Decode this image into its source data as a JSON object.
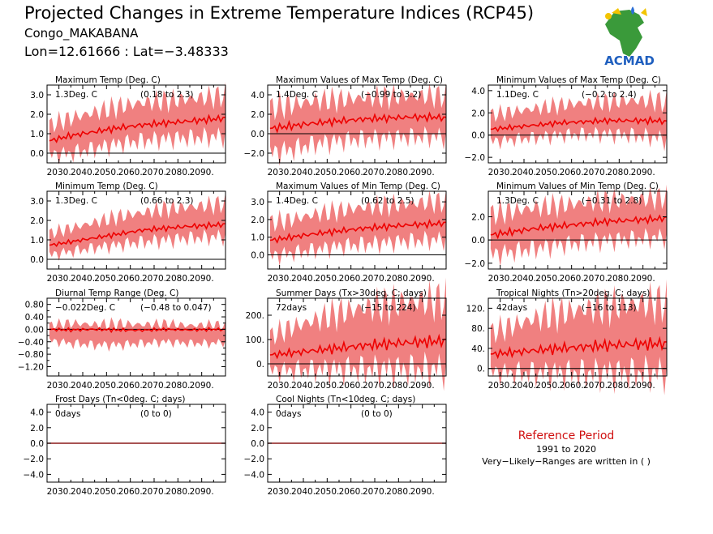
{
  "header": {
    "title": "Projected Changes in Extreme Temperature Indices (RCP45)",
    "location": "Congo_MAKABANA",
    "coords": "Lon=12.61666 : Lat=−3.48333"
  },
  "logo": {
    "name": "ACMAD",
    "text": "ACMAD",
    "icon": "africa-map-logo-icon"
  },
  "reference": {
    "heading": "Reference Period",
    "period": "1991 to 2020",
    "note": "Very−Likely−Ranges are written in ( )"
  },
  "colors": {
    "band": "#f08080",
    "line": "#ee0000",
    "axis": "#000000",
    "zero": "#000000"
  },
  "x_ticks": [
    "2030.",
    "2040.",
    "2050.",
    "2060.",
    "2070.",
    "2080.",
    "2090."
  ],
  "chart_data": [
    {
      "type": "area",
      "title": "Maximum Temp (Deg. C)",
      "value": "1.3Deg. C",
      "range": "(0.18 to 2.3)",
      "ylim": [
        -0.5,
        3.5
      ],
      "yticks": [
        0,
        1,
        2,
        3
      ],
      "ytick_labels": [
        "0.0",
        "1.0",
        "2.0",
        "3.0"
      ],
      "x": [
        2025,
        2035,
        2045,
        2055,
        2065,
        2075,
        2085,
        2095,
        2100
      ],
      "mean": [
        0.6,
        0.9,
        1.1,
        1.3,
        1.45,
        1.55,
        1.65,
        1.75,
        1.8
      ],
      "low": [
        -0.1,
        0.0,
        0.25,
        0.5,
        0.65,
        0.75,
        0.8,
        0.85,
        0.9
      ],
      "high": [
        1.4,
        1.8,
        2.1,
        2.4,
        2.6,
        2.7,
        2.8,
        2.9,
        3.0
      ]
    },
    {
      "type": "area",
      "title": "Maximum Values of Max Temp (Deg. C)",
      "value": "1.4Deg. C",
      "range": "(−0.99 to 3.2)",
      "ylim": [
        -3,
        5
      ],
      "yticks": [
        -2,
        0,
        2,
        4
      ],
      "ytick_labels": [
        "−2.0",
        "0.0",
        "2.0",
        "4.0"
      ],
      "x": [
        2025,
        2035,
        2045,
        2055,
        2065,
        2075,
        2085,
        2095,
        2100
      ],
      "mean": [
        0.5,
        0.8,
        1.1,
        1.3,
        1.5,
        1.6,
        1.7,
        1.7,
        1.6
      ],
      "low": [
        -2.0,
        -1.6,
        -1.0,
        -0.7,
        -0.5,
        -0.4,
        -0.3,
        -0.3,
        -0.3
      ],
      "high": [
        2.6,
        3.0,
        3.4,
        3.5,
        3.7,
        3.8,
        3.9,
        3.9,
        3.9
      ]
    },
    {
      "type": "area",
      "title": "Minimum Values of Max Temp (Deg. C)",
      "value": "1.1Deg. C",
      "range": "(−0.2 to 2.4)",
      "ylim": [
        -2.5,
        4.5
      ],
      "yticks": [
        -2,
        0,
        2,
        4
      ],
      "ytick_labels": [
        "−2.0",
        "0.0",
        "2.0",
        "4.0"
      ],
      "x": [
        2025,
        2035,
        2045,
        2055,
        2065,
        2075,
        2085,
        2095,
        2100
      ],
      "mean": [
        0.5,
        0.7,
        0.9,
        1.1,
        1.2,
        1.3,
        1.3,
        1.3,
        1.2
      ],
      "low": [
        -0.6,
        -0.4,
        -0.2,
        0.0,
        0.1,
        0.1,
        0.0,
        -0.2,
        -0.4
      ],
      "high": [
        1.8,
        2.1,
        2.4,
        2.7,
        2.9,
        3.0,
        3.1,
        3.1,
        3.0
      ]
    },
    {
      "type": "area",
      "title": "Minimum Temp (Deg. C)",
      "value": "1.3Deg. C",
      "range": "(0.66 to 2.3)",
      "ylim": [
        -0.5,
        3.5
      ],
      "yticks": [
        0,
        1,
        2,
        3
      ],
      "ytick_labels": [
        "0.0",
        "1.0",
        "2.0",
        "3.0"
      ],
      "x": [
        2025,
        2035,
        2045,
        2055,
        2065,
        2075,
        2085,
        2095,
        2100
      ],
      "mean": [
        0.7,
        0.9,
        1.1,
        1.3,
        1.5,
        1.6,
        1.7,
        1.75,
        1.8
      ],
      "low": [
        0.2,
        0.4,
        0.6,
        0.75,
        0.9,
        1.0,
        1.1,
        1.15,
        1.2
      ],
      "high": [
        1.3,
        1.6,
        1.9,
        2.2,
        2.4,
        2.6,
        2.7,
        2.8,
        2.9
      ]
    },
    {
      "type": "area",
      "title": "Maximum Values of Min Temp (Deg. C)",
      "value": "1.4Deg. C",
      "range": "(0.62 to 2.5)",
      "ylim": [
        -0.8,
        3.6
      ],
      "yticks": [
        0,
        1,
        2,
        3
      ],
      "ytick_labels": [
        "0.0",
        "1.0",
        "2.0",
        "3.0"
      ],
      "x": [
        2025,
        2035,
        2045,
        2055,
        2065,
        2075,
        2085,
        2095,
        2100
      ],
      "mean": [
        0.8,
        1.0,
        1.2,
        1.35,
        1.5,
        1.6,
        1.7,
        1.75,
        1.8
      ],
      "low": [
        -0.1,
        0.1,
        0.3,
        0.5,
        0.6,
        0.7,
        0.8,
        0.85,
        0.9
      ],
      "high": [
        1.8,
        2.0,
        2.3,
        2.5,
        2.7,
        2.8,
        2.9,
        3.0,
        3.0
      ]
    },
    {
      "type": "area",
      "title": "Minimum Values of Min Temp (Deg. C)",
      "value": "1.3Deg. C",
      "range": "(−0.31 to 2.8)",
      "ylim": [
        -2.5,
        4.2
      ],
      "yticks": [
        -2,
        0,
        2
      ],
      "ytick_labels": [
        "−2.0",
        "0.0",
        "2.0"
      ],
      "x": [
        2025,
        2035,
        2045,
        2055,
        2065,
        2075,
        2085,
        2095,
        2100
      ],
      "mean": [
        0.4,
        0.7,
        1.0,
        1.2,
        1.4,
        1.6,
        1.7,
        1.8,
        1.9
      ],
      "low": [
        -1.3,
        -1.0,
        -0.7,
        -0.4,
        -0.2,
        0.0,
        0.1,
        0.2,
        0.3
      ],
      "high": [
        2.2,
        2.5,
        2.8,
        3.0,
        3.2,
        3.4,
        3.5,
        3.6,
        3.7
      ]
    },
    {
      "type": "area",
      "title": "Diurnal Temp Range (Deg. C)",
      "value": "−0.022Deg. C",
      "range": "(−0.48 to 0.047)",
      "ylim": [
        -1.5,
        1.0
      ],
      "yticks": [
        -1.2,
        -0.8,
        -0.4,
        0,
        0.4,
        0.8
      ],
      "minor_yticks": [
        -1.0,
        -0.6,
        -0.2,
        0.2,
        0.6
      ],
      "ytick_labels": [
        "−1.20",
        "−0.80",
        "−0.40",
        "0.00",
        "0.40",
        "0.80"
      ],
      "x": [
        2025,
        2035,
        2045,
        2055,
        2065,
        2075,
        2085,
        2095,
        2100
      ],
      "mean": [
        0.0,
        -0.02,
        0.0,
        -0.02,
        -0.03,
        0.0,
        -0.02,
        0.0,
        -0.01
      ],
      "low": [
        -0.35,
        -0.45,
        -0.5,
        -0.5,
        -0.45,
        -0.4,
        -0.45,
        -0.45,
        -0.4
      ],
      "high": [
        0.12,
        0.2,
        0.15,
        0.18,
        0.15,
        0.18,
        0.12,
        0.15,
        0.12
      ]
    },
    {
      "type": "area",
      "title": "Summer Days (Tx>30deg. C; days)",
      "value": "72days",
      "range": "(−15 to 224)",
      "ylim": [
        -50,
        270
      ],
      "yticks": [
        0,
        100,
        200
      ],
      "ytick_labels": [
        "0.",
        "100.",
        "200."
      ],
      "x": [
        2025,
        2035,
        2045,
        2055,
        2065,
        2075,
        2085,
        2095,
        2100
      ],
      "mean": [
        35,
        45,
        55,
        65,
        75,
        82,
        88,
        92,
        95
      ],
      "low": [
        -30,
        -25,
        -22,
        -20,
        -20,
        -20,
        -20,
        -20,
        -20
      ],
      "high": [
        110,
        150,
        180,
        210,
        230,
        245,
        255,
        260,
        265
      ]
    },
    {
      "type": "area",
      "title": "Tropical Nights (Tn>20deg. C; days)",
      "value": "42days",
      "range": "(−16 to 113)",
      "ylim": [
        -15,
        140
      ],
      "yticks": [
        0,
        40,
        80,
        120
      ],
      "ytick_labels": [
        "0.",
        "40.",
        "80.",
        "120."
      ],
      "x": [
        2025,
        2035,
        2045,
        2055,
        2065,
        2075,
        2085,
        2095,
        2100
      ],
      "mean": [
        28,
        32,
        36,
        40,
        43,
        46,
        48,
        49,
        50
      ],
      "low": [
        -8,
        -8,
        -8,
        -8,
        -8,
        -8,
        -8,
        -8,
        -8
      ],
      "high": [
        70,
        85,
        100,
        110,
        118,
        124,
        128,
        131,
        133
      ]
    },
    {
      "type": "area",
      "title": "Frost Days (Tn<0deg. C; days)",
      "value": "0days",
      "range": "(0 to 0)",
      "ylim": [
        -5,
        5
      ],
      "yticks": [
        -4,
        -2,
        0,
        2,
        4
      ],
      "ytick_labels": [
        "−4.0",
        "−2.0",
        "0.0",
        "2.0",
        "4.0"
      ],
      "x": [
        2025,
        2100
      ],
      "mean": [
        0,
        0
      ],
      "low": [
        0,
        0
      ],
      "high": [
        0,
        0
      ]
    },
    {
      "type": "area",
      "title": "Cool Nights (Tn<10deg. C; days)",
      "value": "0days",
      "range": "(0 to 0)",
      "ylim": [
        -5,
        5
      ],
      "yticks": [
        -4,
        -2,
        0,
        2,
        4
      ],
      "ytick_labels": [
        "−4.0",
        "−2.0",
        "0.0",
        "2.0",
        "4.0"
      ],
      "x": [
        2025,
        2100
      ],
      "mean": [
        0,
        0
      ],
      "low": [
        0,
        0
      ],
      "high": [
        0,
        0
      ]
    }
  ]
}
